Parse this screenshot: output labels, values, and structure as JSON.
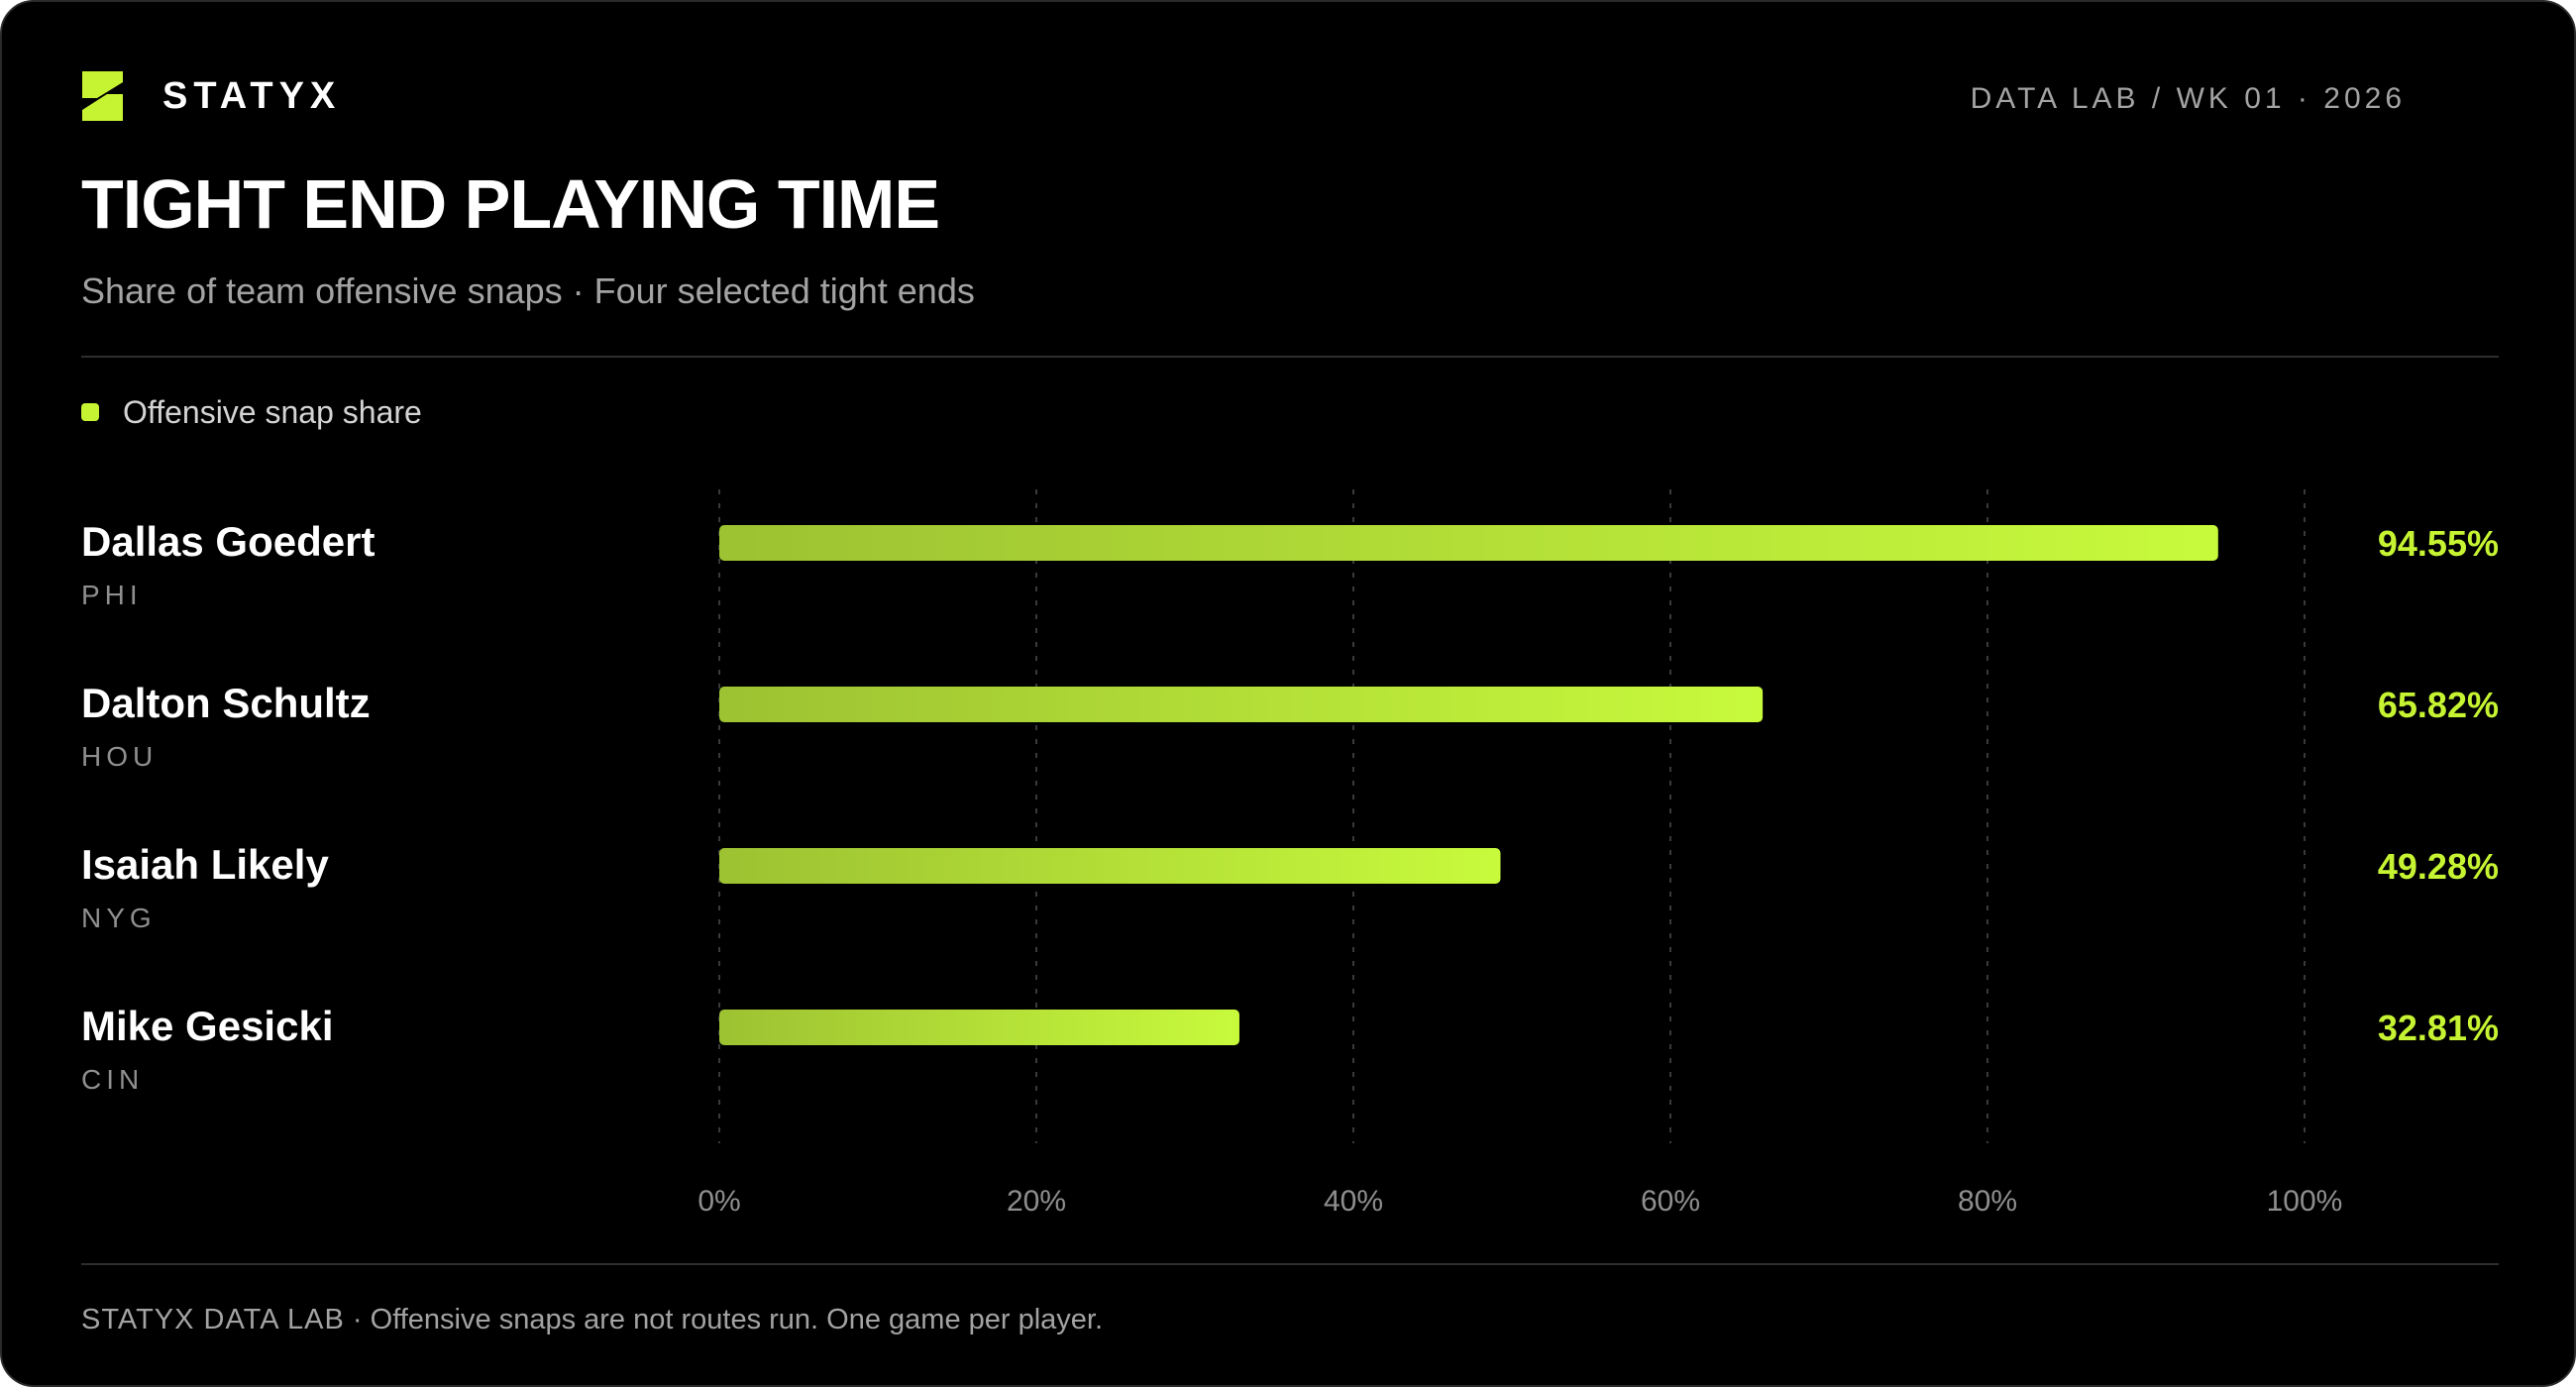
{
  "brand": {
    "name": "STATYX",
    "meta": "DATA LAB / WK 01 · 2026"
  },
  "legend": {
    "label": "Offensive snap share",
    "color": "#c6f432"
  },
  "footer": {
    "brand": "STATYX DATA LAB",
    "separator": " · ",
    "note": "Offensive snaps are not routes run. One game per player."
  },
  "colors": {
    "background": "#000000",
    "accent": "#c6f432",
    "bar_start": "#9dc232",
    "bar_end": "#c8fa3c"
  },
  "chart_data": {
    "type": "bar",
    "orientation": "horizontal",
    "title": "TIGHT END PLAYING TIME",
    "subtitle": "Share of team offensive snaps · Four selected tight ends",
    "categories": [
      "Dallas Goedert",
      "Dalton Schultz",
      "Isaiah Likely",
      "Mike Gesicki"
    ],
    "teams": [
      "PHI",
      "HOU",
      "NYG",
      "CIN"
    ],
    "series": [
      {
        "name": "Offensive snap share",
        "values": [
          94.55,
          65.82,
          49.28,
          32.81
        ],
        "labels": [
          "94.55%",
          "65.82%",
          "49.28%",
          "32.81%"
        ]
      }
    ],
    "xlim": [
      0,
      100
    ],
    "xticks": [
      "0%",
      "20%",
      "40%",
      "60%",
      "80%",
      "100%"
    ],
    "grid": "vertical-dotted",
    "legend_position": "top-left"
  }
}
